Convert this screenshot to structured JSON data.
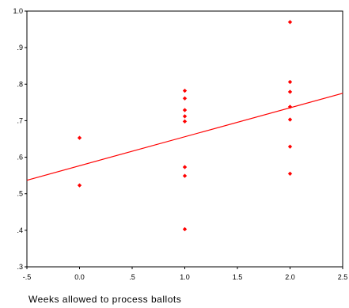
{
  "chart_data": {
    "type": "scatter",
    "xlabel": "Weeks allowed to process ballots",
    "ylabel": "",
    "xlim": [
      -0.5,
      2.5
    ],
    "ylim": [
      0.3,
      1.0
    ],
    "x_ticks": [
      -0.5,
      0.0,
      0.5,
      1.0,
      1.5,
      2.0,
      2.5
    ],
    "x_tick_labels": [
      "-.5",
      "0.0",
      ".5",
      "1.0",
      "1.5",
      "2.0",
      "2.5"
    ],
    "y_ticks": [
      0.3,
      0.4,
      0.5,
      0.6,
      0.7,
      0.8,
      0.9,
      1.0
    ],
    "y_tick_labels": [
      ".3",
      ".4",
      ".5",
      ".6",
      ".7",
      ".8",
      ".9",
      "1.0"
    ],
    "grid": false,
    "point_color": "#ff0000",
    "line_color": "#ff0000",
    "points": [
      {
        "x": 0.0,
        "y": 0.653
      },
      {
        "x": 0.0,
        "y": 0.523
      },
      {
        "x": 1.0,
        "y": 0.782
      },
      {
        "x": 1.0,
        "y": 0.761
      },
      {
        "x": 1.0,
        "y": 0.729
      },
      {
        "x": 1.0,
        "y": 0.712
      },
      {
        "x": 1.0,
        "y": 0.698
      },
      {
        "x": 1.0,
        "y": 0.573
      },
      {
        "x": 1.0,
        "y": 0.549
      },
      {
        "x": 1.0,
        "y": 0.403
      },
      {
        "x": 2.0,
        "y": 0.97
      },
      {
        "x": 2.0,
        "y": 0.806
      },
      {
        "x": 2.0,
        "y": 0.779
      },
      {
        "x": 2.0,
        "y": 0.738
      },
      {
        "x": 2.0,
        "y": 0.703
      },
      {
        "x": 2.0,
        "y": 0.629
      },
      {
        "x": 2.0,
        "y": 0.555
      }
    ],
    "fit_line": {
      "x": [
        -0.5,
        2.5
      ],
      "y": [
        0.537,
        0.775
      ]
    }
  }
}
